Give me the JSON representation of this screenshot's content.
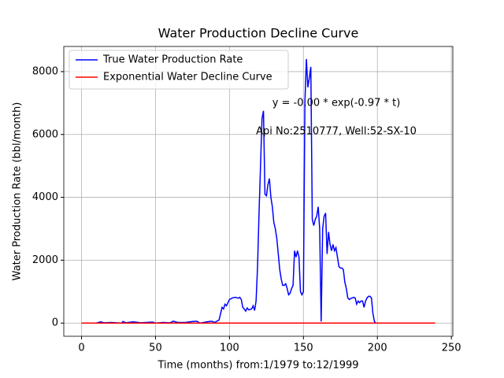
{
  "chart_data": {
    "type": "line",
    "title": "Water Production Decline Curve",
    "xlabel": "Time (months) from:1/1979 to:12/1999",
    "ylabel": "Water Production Rate (bbl/month)",
    "annotations": [
      "y = -0.00 * exp(-0.97 * t)",
      "Api No:2510777, Well:52-SX-10"
    ],
    "xlim": [
      -12,
      251
    ],
    "ylim": [
      -420,
      8800
    ],
    "xticks": [
      0,
      50,
      100,
      150,
      200,
      250
    ],
    "yticks": [
      0,
      2000,
      4000,
      6000,
      8000
    ],
    "grid": true,
    "legend": "upper left",
    "series": [
      {
        "name": "True Water Production Rate",
        "color": "#0000ff",
        "x": [
          0,
          10,
          13,
          15,
          20,
          27,
          28,
          30,
          35,
          40,
          48,
          50,
          55,
          60,
          62,
          65,
          70,
          75,
          78,
          80,
          85,
          88,
          90,
          93,
          95,
          96,
          97,
          98,
          100,
          102,
          104,
          106,
          107,
          108,
          109,
          110,
          111,
          112,
          113,
          115,
          116,
          117,
          118,
          119,
          120,
          121,
          122,
          123,
          124,
          125,
          126,
          127,
          128,
          129,
          130,
          131,
          132,
          133,
          134,
          135,
          136,
          137,
          138,
          139,
          140,
          141,
          142,
          143,
          144,
          145,
          146,
          147,
          148,
          149,
          150,
          151,
          152,
          153,
          154,
          155,
          156,
          157,
          158,
          159,
          160,
          161,
          162,
          163,
          164,
          165,
          166,
          167,
          168,
          169,
          170,
          171,
          172,
          173,
          174,
          175,
          176,
          177,
          178,
          179,
          180,
          181,
          182,
          183,
          184,
          185,
          186,
          187,
          188,
          189,
          190,
          191,
          192,
          193,
          194,
          195,
          196,
          197,
          198,
          199,
          239
        ],
        "values": [
          0,
          0,
          40,
          10,
          20,
          0,
          50,
          10,
          40,
          10,
          30,
          0,
          20,
          10,
          60,
          20,
          20,
          50,
          60,
          0,
          40,
          60,
          20,
          100,
          500,
          450,
          600,
          550,
          750,
          800,
          820,
          790,
          820,
          750,
          500,
          450,
          380,
          480,
          420,
          450,
          550,
          400,
          700,
          1800,
          3500,
          5000,
          6500,
          6750,
          4100,
          4050,
          4400,
          4600,
          4000,
          3700,
          3200,
          3000,
          2700,
          2200,
          1700,
          1400,
          1200,
          1200,
          1250,
          1100,
          900,
          950,
          1100,
          1200,
          2300,
          2100,
          2300,
          2100,
          1000,
          900,
          1000,
          7000,
          8400,
          7500,
          7800,
          8150,
          3300,
          3100,
          3300,
          3400,
          3700,
          3000,
          50,
          3000,
          3400,
          3500,
          2200,
          2900,
          2500,
          2300,
          2500,
          2300,
          2400,
          2100,
          1800,
          1750,
          1750,
          1700,
          1300,
          1100,
          800,
          750,
          780,
          800,
          820,
          800,
          600,
          700,
          650,
          700,
          700,
          500,
          700,
          800,
          850,
          850,
          800,
          300,
          50,
          0,
          0
        ]
      },
      {
        "name": "Exponential Water Decline Curve",
        "color": "#ff0000",
        "x": [
          0,
          239
        ],
        "values": [
          0,
          0
        ]
      }
    ]
  }
}
